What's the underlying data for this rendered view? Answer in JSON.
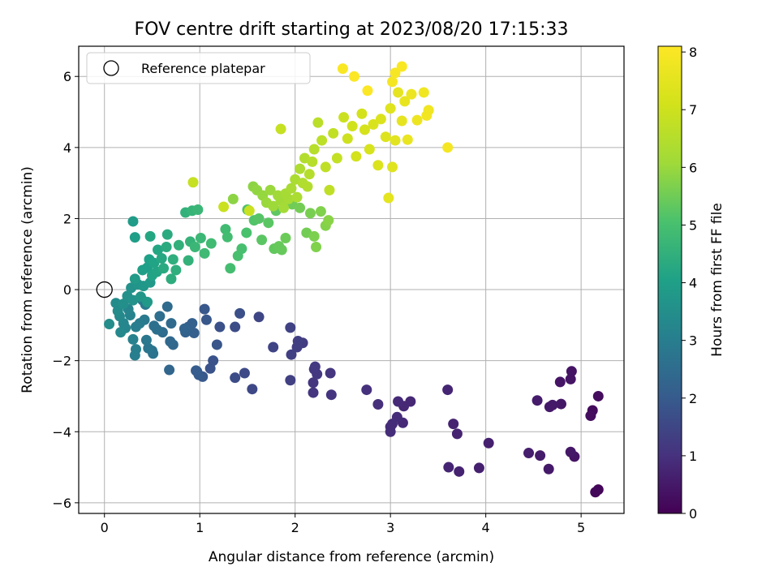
{
  "chart_data": {
    "type": "scatter",
    "title": "FOV centre drift starting at 2023/08/20 17:15:33",
    "xlabel": "Angular distance from reference (arcmin)",
    "ylabel": "Rotation from reference (arcmin)",
    "xlim": [
      -0.27,
      5.45
    ],
    "ylim": [
      -6.3,
      6.85
    ],
    "xticks": [
      "0",
      "1",
      "2",
      "3",
      "4",
      "5"
    ],
    "yticks": [
      "−6",
      "−4",
      "−2",
      "0",
      "2",
      "4",
      "6"
    ],
    "grid": true,
    "legend": {
      "placement": "top-left",
      "entries": [
        "Reference platepar"
      ]
    },
    "reference_point": {
      "x": 0.0,
      "y": 0.0
    },
    "colorbar": {
      "label": "Hours from first FF file",
      "range": [
        0,
        8.1
      ],
      "ticks": [
        "0",
        "1",
        "2",
        "3",
        "4",
        "5",
        "6",
        "7",
        "8"
      ],
      "colormap": "viridis"
    },
    "points": [
      {
        "x": 5.18,
        "y": -5.63,
        "h": 0.1
      },
      {
        "x": 5.15,
        "y": -5.7,
        "h": 0.15
      },
      {
        "x": 5.12,
        "y": -3.4,
        "h": 0.2
      },
      {
        "x": 5.1,
        "y": -3.55,
        "h": 0.25
      },
      {
        "x": 5.18,
        "y": -3.0,
        "h": 0.25
      },
      {
        "x": 4.93,
        "y": -4.7,
        "h": 0.4
      },
      {
        "x": 4.89,
        "y": -4.57,
        "h": 0.45
      },
      {
        "x": 4.9,
        "y": -2.3,
        "h": 0.4
      },
      {
        "x": 4.89,
        "y": -2.52,
        "h": 0.4
      },
      {
        "x": 4.78,
        "y": -2.6,
        "h": 0.4
      },
      {
        "x": 4.79,
        "y": -3.22,
        "h": 0.45
      },
      {
        "x": 4.67,
        "y": -3.3,
        "h": 0.5
      },
      {
        "x": 4.7,
        "y": -3.25,
        "h": 0.5
      },
      {
        "x": 4.66,
        "y": -5.05,
        "h": 0.5
      },
      {
        "x": 4.57,
        "y": -4.67,
        "h": 0.55
      },
      {
        "x": 4.54,
        "y": -3.12,
        "h": 0.55
      },
      {
        "x": 4.45,
        "y": -4.6,
        "h": 0.6
      },
      {
        "x": 4.03,
        "y": -4.32,
        "h": 0.65
      },
      {
        "x": 3.93,
        "y": -5.02,
        "h": 0.65
      },
      {
        "x": 3.72,
        "y": -5.12,
        "h": 0.7
      },
      {
        "x": 3.7,
        "y": -4.06,
        "h": 0.7
      },
      {
        "x": 3.66,
        "y": -3.78,
        "h": 0.7
      },
      {
        "x": 3.6,
        "y": -2.82,
        "h": 0.75
      },
      {
        "x": 3.61,
        "y": -5.0,
        "h": 0.75
      },
      {
        "x": 3.21,
        "y": -3.15,
        "h": 0.8
      },
      {
        "x": 3.14,
        "y": -3.28,
        "h": 0.8
      },
      {
        "x": 3.13,
        "y": -3.75,
        "h": 0.85
      },
      {
        "x": 3.08,
        "y": -3.15,
        "h": 0.85
      },
      {
        "x": 3.07,
        "y": -3.59,
        "h": 0.9
      },
      {
        "x": 3.02,
        "y": -3.78,
        "h": 0.9
      },
      {
        "x": 3.0,
        "y": -3.86,
        "h": 0.9
      },
      {
        "x": 3.0,
        "y": -4.0,
        "h": 0.9
      },
      {
        "x": 2.87,
        "y": -3.23,
        "h": 0.95
      },
      {
        "x": 2.75,
        "y": -2.82,
        "h": 1.0
      },
      {
        "x": 2.38,
        "y": -2.96,
        "h": 1.05
      },
      {
        "x": 2.37,
        "y": -2.35,
        "h": 1.1
      },
      {
        "x": 2.19,
        "y": -2.9,
        "h": 1.1
      },
      {
        "x": 2.19,
        "y": -2.62,
        "h": 1.1
      },
      {
        "x": 2.2,
        "y": -2.24,
        "h": 1.15
      },
      {
        "x": 2.23,
        "y": -2.38,
        "h": 1.15
      },
      {
        "x": 2.21,
        "y": -2.17,
        "h": 1.2
      },
      {
        "x": 2.08,
        "y": -1.5,
        "h": 1.25
      },
      {
        "x": 2.03,
        "y": -1.45,
        "h": 1.3
      },
      {
        "x": 2.02,
        "y": -1.62,
        "h": 1.3
      },
      {
        "x": 1.96,
        "y": -1.83,
        "h": 1.35
      },
      {
        "x": 1.95,
        "y": -2.55,
        "h": 1.35
      },
      {
        "x": 1.95,
        "y": -1.07,
        "h": 1.4
      },
      {
        "x": 1.77,
        "y": -1.62,
        "h": 1.45
      },
      {
        "x": 1.62,
        "y": -0.77,
        "h": 1.5
      },
      {
        "x": 1.55,
        "y": -2.8,
        "h": 1.55
      },
      {
        "x": 1.47,
        "y": -2.35,
        "h": 1.6
      },
      {
        "x": 1.37,
        "y": -2.48,
        "h": 1.65
      },
      {
        "x": 1.37,
        "y": -1.05,
        "h": 1.65
      },
      {
        "x": 1.42,
        "y": -0.67,
        "h": 1.7
      },
      {
        "x": 1.21,
        "y": -1.05,
        "h": 1.75
      },
      {
        "x": 1.14,
        "y": -2.0,
        "h": 1.8
      },
      {
        "x": 1.11,
        "y": -2.22,
        "h": 1.8
      },
      {
        "x": 1.18,
        "y": -1.55,
        "h": 1.85
      },
      {
        "x": 1.07,
        "y": -0.85,
        "h": 1.9
      },
      {
        "x": 1.05,
        "y": -0.55,
        "h": 1.9
      },
      {
        "x": 1.03,
        "y": -2.45,
        "h": 1.95
      },
      {
        "x": 0.99,
        "y": -2.4,
        "h": 2.0
      },
      {
        "x": 0.97,
        "y": -2.3,
        "h": 2.0
      },
      {
        "x": 0.96,
        "y": -2.28,
        "h": 2.05
      },
      {
        "x": 0.94,
        "y": -1.22,
        "h": 2.1
      },
      {
        "x": 0.92,
        "y": -0.95,
        "h": 2.15
      },
      {
        "x": 0.88,
        "y": -1.05,
        "h": 2.15
      },
      {
        "x": 0.85,
        "y": -1.2,
        "h": 2.2
      },
      {
        "x": 0.84,
        "y": -1.1,
        "h": 2.25
      },
      {
        "x": 0.68,
        "y": -2.26,
        "h": 2.3
      },
      {
        "x": 0.72,
        "y": -1.55,
        "h": 2.35
      },
      {
        "x": 0.69,
        "y": -1.46,
        "h": 2.4
      },
      {
        "x": 0.7,
        "y": -0.95,
        "h": 2.45
      },
      {
        "x": 0.66,
        "y": -0.48,
        "h": 2.45
      },
      {
        "x": 0.61,
        "y": -1.2,
        "h": 2.5
      },
      {
        "x": 0.58,
        "y": -0.75,
        "h": 2.55
      },
      {
        "x": 0.55,
        "y": -1.12,
        "h": 2.6
      },
      {
        "x": 0.52,
        "y": -1.02,
        "h": 2.6
      },
      {
        "x": 0.5,
        "y": -1.72,
        "h": 2.65
      },
      {
        "x": 0.51,
        "y": -1.8,
        "h": 2.7
      },
      {
        "x": 0.46,
        "y": -1.65,
        "h": 2.75
      },
      {
        "x": 0.44,
        "y": -1.42,
        "h": 2.8
      },
      {
        "x": 0.42,
        "y": -0.85,
        "h": 2.85
      },
      {
        "x": 0.43,
        "y": -0.42,
        "h": 2.9
      },
      {
        "x": 0.4,
        "y": -0.3,
        "h": 2.9
      },
      {
        "x": 0.37,
        "y": -0.95,
        "h": 2.95
      },
      {
        "x": 0.33,
        "y": -1.05,
        "h": 3.0
      },
      {
        "x": 0.32,
        "y": -1.85,
        "h": 3.0
      },
      {
        "x": 0.33,
        "y": -1.68,
        "h": 3.05
      },
      {
        "x": 0.3,
        "y": -1.4,
        "h": 3.1
      },
      {
        "x": 0.27,
        "y": -0.72,
        "h": 3.15
      },
      {
        "x": 0.25,
        "y": -0.55,
        "h": 3.2
      },
      {
        "x": 0.22,
        "y": -1.08,
        "h": 3.25
      },
      {
        "x": 0.2,
        "y": -0.95,
        "h": 3.25
      },
      {
        "x": 0.17,
        "y": -1.2,
        "h": 3.3
      },
      {
        "x": 0.16,
        "y": -0.75,
        "h": 3.35
      },
      {
        "x": 0.12,
        "y": -0.38,
        "h": 3.4
      },
      {
        "x": 0.14,
        "y": -0.6,
        "h": 3.4
      },
      {
        "x": 0.05,
        "y": -0.97,
        "h": 3.45
      },
      {
        "x": 0.2,
        "y": -0.4,
        "h": 3.5
      },
      {
        "x": 0.24,
        "y": -0.18,
        "h": 3.55
      },
      {
        "x": 0.28,
        "y": 0.05,
        "h": 3.6
      },
      {
        "x": 0.3,
        "y": -0.3,
        "h": 3.6
      },
      {
        "x": 0.35,
        "y": 0.15,
        "h": 3.65
      },
      {
        "x": 0.38,
        "y": -0.2,
        "h": 3.7
      },
      {
        "x": 0.41,
        "y": 0.1,
        "h": 3.75
      },
      {
        "x": 0.45,
        "y": -0.35,
        "h": 3.8
      },
      {
        "x": 0.48,
        "y": 0.2,
        "h": 3.8
      },
      {
        "x": 0.32,
        "y": 0.3,
        "h": 3.85
      },
      {
        "x": 0.3,
        "y": 1.92,
        "h": 3.9
      },
      {
        "x": 0.32,
        "y": 1.47,
        "h": 3.95
      },
      {
        "x": 0.4,
        "y": 0.55,
        "h": 4.0
      },
      {
        "x": 0.45,
        "y": 0.62,
        "h": 4.0
      },
      {
        "x": 0.47,
        "y": 0.85,
        "h": 4.05
      },
      {
        "x": 0.5,
        "y": 0.4,
        "h": 4.1
      },
      {
        "x": 0.52,
        "y": 0.75,
        "h": 4.1
      },
      {
        "x": 0.55,
        "y": 0.5,
        "h": 4.15
      },
      {
        "x": 0.48,
        "y": 1.5,
        "h": 4.2
      },
      {
        "x": 0.56,
        "y": 1.12,
        "h": 4.2
      },
      {
        "x": 0.6,
        "y": 0.88,
        "h": 4.25
      },
      {
        "x": 0.62,
        "y": 0.6,
        "h": 4.3
      },
      {
        "x": 0.65,
        "y": 1.2,
        "h": 4.35
      },
      {
        "x": 0.66,
        "y": 1.55,
        "h": 4.35
      },
      {
        "x": 0.7,
        "y": 0.3,
        "h": 4.4
      },
      {
        "x": 0.72,
        "y": 0.85,
        "h": 4.45
      },
      {
        "x": 0.75,
        "y": 0.55,
        "h": 4.45
      },
      {
        "x": 0.78,
        "y": 1.25,
        "h": 4.5
      },
      {
        "x": 0.85,
        "y": 2.17,
        "h": 4.55
      },
      {
        "x": 0.88,
        "y": 0.82,
        "h": 4.55
      },
      {
        "x": 0.9,
        "y": 1.35,
        "h": 4.6
      },
      {
        "x": 0.92,
        "y": 2.22,
        "h": 4.65
      },
      {
        "x": 0.95,
        "y": 1.2,
        "h": 4.7
      },
      {
        "x": 0.98,
        "y": 2.25,
        "h": 4.7
      },
      {
        "x": 1.01,
        "y": 1.45,
        "h": 4.75
      },
      {
        "x": 1.05,
        "y": 1.02,
        "h": 4.8
      },
      {
        "x": 1.12,
        "y": 1.3,
        "h": 4.85
      },
      {
        "x": 1.27,
        "y": 1.7,
        "h": 4.85
      },
      {
        "x": 1.29,
        "y": 1.48,
        "h": 4.9
      },
      {
        "x": 1.32,
        "y": 0.6,
        "h": 4.95
      },
      {
        "x": 1.4,
        "y": 0.95,
        "h": 5.0
      },
      {
        "x": 1.44,
        "y": 1.15,
        "h": 5.0
      },
      {
        "x": 1.49,
        "y": 1.6,
        "h": 5.05
      },
      {
        "x": 1.5,
        "y": 2.25,
        "h": 5.1
      },
      {
        "x": 1.57,
        "y": 1.95,
        "h": 5.15
      },
      {
        "x": 1.62,
        "y": 2.0,
        "h": 5.2
      },
      {
        "x": 1.65,
        "y": 1.4,
        "h": 5.25
      },
      {
        "x": 1.72,
        "y": 1.88,
        "h": 5.25
      },
      {
        "x": 1.8,
        "y": 2.22,
        "h": 5.3
      },
      {
        "x": 1.78,
        "y": 1.15,
        "h": 5.35
      },
      {
        "x": 1.83,
        "y": 1.22,
        "h": 5.4
      },
      {
        "x": 1.86,
        "y": 1.12,
        "h": 5.4
      },
      {
        "x": 1.9,
        "y": 1.45,
        "h": 5.45
      },
      {
        "x": 1.97,
        "y": 2.4,
        "h": 5.5
      },
      {
        "x": 2.05,
        "y": 2.3,
        "h": 5.55
      },
      {
        "x": 2.12,
        "y": 1.6,
        "h": 5.55
      },
      {
        "x": 2.16,
        "y": 2.15,
        "h": 5.6
      },
      {
        "x": 2.2,
        "y": 1.5,
        "h": 5.65
      },
      {
        "x": 2.22,
        "y": 1.2,
        "h": 5.7
      },
      {
        "x": 2.27,
        "y": 2.2,
        "h": 5.7
      },
      {
        "x": 2.32,
        "y": 1.8,
        "h": 5.75
      },
      {
        "x": 2.35,
        "y": 1.95,
        "h": 5.8
      },
      {
        "x": 1.35,
        "y": 2.55,
        "h": 5.85
      },
      {
        "x": 1.56,
        "y": 2.9,
        "h": 5.85
      },
      {
        "x": 1.6,
        "y": 2.8,
        "h": 5.9
      },
      {
        "x": 1.66,
        "y": 2.65,
        "h": 5.95
      },
      {
        "x": 1.7,
        "y": 2.45,
        "h": 6.0
      },
      {
        "x": 1.74,
        "y": 2.8,
        "h": 6.0
      },
      {
        "x": 1.77,
        "y": 2.35,
        "h": 6.05
      },
      {
        "x": 1.82,
        "y": 2.65,
        "h": 6.1
      },
      {
        "x": 1.85,
        "y": 2.5,
        "h": 6.1
      },
      {
        "x": 1.88,
        "y": 2.3,
        "h": 6.15
      },
      {
        "x": 1.9,
        "y": 2.7,
        "h": 6.2
      },
      {
        "x": 1.93,
        "y": 2.55,
        "h": 6.2
      },
      {
        "x": 1.96,
        "y": 2.85,
        "h": 6.25
      },
      {
        "x": 2.0,
        "y": 3.1,
        "h": 6.3
      },
      {
        "x": 2.02,
        "y": 2.6,
        "h": 6.3
      },
      {
        "x": 2.05,
        "y": 3.4,
        "h": 6.35
      },
      {
        "x": 2.08,
        "y": 3.0,
        "h": 6.4
      },
      {
        "x": 2.1,
        "y": 3.7,
        "h": 6.45
      },
      {
        "x": 2.13,
        "y": 2.9,
        "h": 6.45
      },
      {
        "x": 2.15,
        "y": 3.25,
        "h": 6.5
      },
      {
        "x": 2.18,
        "y": 3.6,
        "h": 6.55
      },
      {
        "x": 2.2,
        "y": 3.95,
        "h": 6.55
      },
      {
        "x": 2.24,
        "y": 4.7,
        "h": 6.6
      },
      {
        "x": 2.28,
        "y": 4.2,
        "h": 6.65
      },
      {
        "x": 2.32,
        "y": 3.45,
        "h": 6.7
      },
      {
        "x": 2.36,
        "y": 2.8,
        "h": 6.7
      },
      {
        "x": 2.4,
        "y": 4.4,
        "h": 6.75
      },
      {
        "x": 2.44,
        "y": 3.7,
        "h": 6.8
      },
      {
        "x": 1.85,
        "y": 4.52,
        "h": 6.85
      },
      {
        "x": 0.93,
        "y": 3.02,
        "h": 6.85
      },
      {
        "x": 1.25,
        "y": 2.33,
        "h": 6.9
      },
      {
        "x": 1.52,
        "y": 2.22,
        "h": 6.9
      },
      {
        "x": 2.51,
        "y": 4.85,
        "h": 6.95
      },
      {
        "x": 2.55,
        "y": 4.25,
        "h": 7.0
      },
      {
        "x": 2.6,
        "y": 4.6,
        "h": 7.05
      },
      {
        "x": 2.64,
        "y": 3.75,
        "h": 7.1
      },
      {
        "x": 2.7,
        "y": 4.95,
        "h": 7.1
      },
      {
        "x": 2.73,
        "y": 4.5,
        "h": 7.15
      },
      {
        "x": 2.78,
        "y": 3.95,
        "h": 7.2
      },
      {
        "x": 2.82,
        "y": 4.65,
        "h": 7.25
      },
      {
        "x": 2.87,
        "y": 3.5,
        "h": 7.3
      },
      {
        "x": 2.9,
        "y": 4.8,
        "h": 7.3
      },
      {
        "x": 2.95,
        "y": 4.3,
        "h": 7.35
      },
      {
        "x": 3.0,
        "y": 5.1,
        "h": 7.4
      },
      {
        "x": 3.02,
        "y": 3.45,
        "h": 7.4
      },
      {
        "x": 3.05,
        "y": 4.2,
        "h": 7.45
      },
      {
        "x": 2.98,
        "y": 2.58,
        "h": 7.5
      },
      {
        "x": 3.08,
        "y": 5.55,
        "h": 7.55
      },
      {
        "x": 3.12,
        "y": 4.75,
        "h": 7.55
      },
      {
        "x": 3.15,
        "y": 5.3,
        "h": 7.6
      },
      {
        "x": 3.18,
        "y": 4.22,
        "h": 7.65
      },
      {
        "x": 3.22,
        "y": 5.5,
        "h": 7.7
      },
      {
        "x": 3.28,
        "y": 4.77,
        "h": 7.75
      },
      {
        "x": 3.35,
        "y": 5.55,
        "h": 7.8
      },
      {
        "x": 3.4,
        "y": 5.05,
        "h": 7.8
      },
      {
        "x": 3.38,
        "y": 4.9,
        "h": 7.85
      },
      {
        "x": 3.6,
        "y": 4.0,
        "h": 7.9
      },
      {
        "x": 3.02,
        "y": 5.85,
        "h": 7.9
      },
      {
        "x": 3.05,
        "y": 6.1,
        "h": 7.95
      },
      {
        "x": 3.12,
        "y": 6.28,
        "h": 8.0
      },
      {
        "x": 2.5,
        "y": 6.22,
        "h": 8.0
      },
      {
        "x": 2.62,
        "y": 6.0,
        "h": 8.05
      },
      {
        "x": 2.76,
        "y": 5.6,
        "h": 8.05
      }
    ]
  }
}
